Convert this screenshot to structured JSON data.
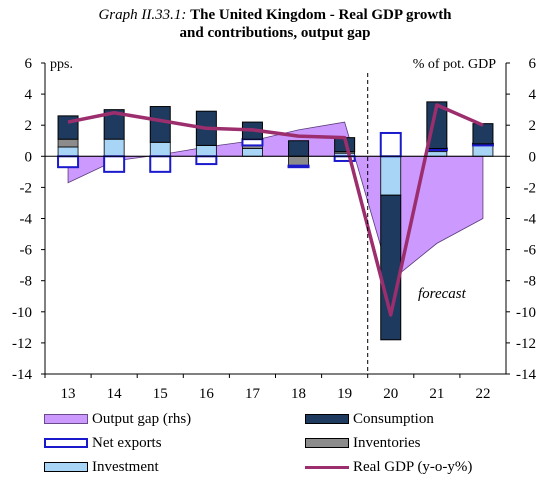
{
  "title": {
    "prefix": "Graph II.33.1:",
    "line1": "The United Kingdom - Real GDP growth",
    "line2": "and contributions, output gap"
  },
  "axis_labels": {
    "left_unit": "pps.",
    "right_unit": "% of pot. GDP"
  },
  "annotation": "forecast",
  "colors": {
    "consumption": "#1f3a5f",
    "net_exports_border": "#1a1acc",
    "inventories": "#8c8c8c",
    "investment": "#a8d4f5",
    "output_gap_fill": "#cc99ff",
    "real_gdp": "#9c2e6e"
  },
  "legend": [
    {
      "key": "output_gap",
      "label": "Output gap (rhs)"
    },
    {
      "key": "consumption",
      "label": "Consumption"
    },
    {
      "key": "net_exports",
      "label": "Net exports"
    },
    {
      "key": "inventories",
      "label": "Inventories"
    },
    {
      "key": "investment",
      "label": "Investment"
    },
    {
      "key": "real_gdp",
      "label": "Real GDP (y-o-y%)"
    }
  ],
  "chart_data": {
    "type": "bar",
    "categories": [
      "13",
      "14",
      "15",
      "16",
      "17",
      "18",
      "19",
      "20",
      "21",
      "22"
    ],
    "ylim": [
      -14,
      6
    ],
    "yticks": [
      -14,
      -12,
      -10,
      -8,
      -6,
      -4,
      -2,
      0,
      2,
      4,
      6
    ],
    "y2lim": [
      -14,
      6
    ],
    "y2ticks": [
      -14,
      -12,
      -10,
      -8,
      -6,
      -4,
      -2,
      0,
      2,
      4,
      6
    ],
    "forecast_from": "20",
    "series": [
      {
        "name": "Consumption",
        "kind": "stacked-bar",
        "values": [
          1.5,
          1.9,
          2.3,
          2.2,
          1.1,
          1.0,
          0.9,
          -9.3,
          3.0,
          1.3
        ]
      },
      {
        "name": "Net exports",
        "kind": "stacked-bar",
        "values": [
          -0.7,
          -1.0,
          -1.0,
          -0.5,
          0.4,
          -0.1,
          -0.3,
          1.5,
          0.1,
          0.1
        ]
      },
      {
        "name": "Inventories",
        "kind": "stacked-bar",
        "values": [
          0.5,
          0.0,
          0.0,
          0.0,
          0.2,
          -0.6,
          0.1,
          0.0,
          0.1,
          0.0
        ]
      },
      {
        "name": "Investment",
        "kind": "stacked-bar",
        "values": [
          0.6,
          1.1,
          0.9,
          0.7,
          0.5,
          0.0,
          0.2,
          -2.5,
          0.3,
          0.7
        ]
      },
      {
        "name": "Output gap (rhs)",
        "kind": "area",
        "values": [
          -1.7,
          -0.3,
          0.1,
          0.6,
          1.0,
          1.7,
          2.2,
          -8.0,
          -5.6,
          -4.0
        ]
      },
      {
        "name": "Real GDP (y-o-y%)",
        "kind": "line",
        "values": [
          2.2,
          2.8,
          2.3,
          1.8,
          1.7,
          1.3,
          1.2,
          -10.2,
          3.3,
          2.0
        ]
      }
    ]
  }
}
